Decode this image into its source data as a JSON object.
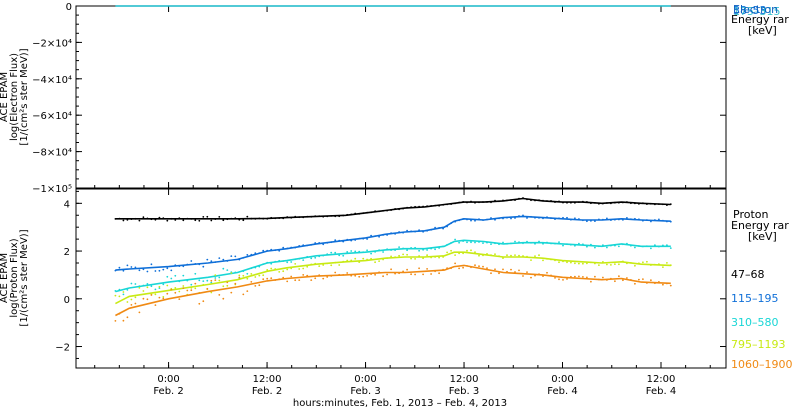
{
  "chart_data": [
    {
      "type": "line",
      "panel": "electron",
      "ylabel": [
        "ACE EPAM",
        "log(Electron Flux)",
        "[1/(cm²s ster MeV)]"
      ],
      "ylim": [
        -100000,
        0
      ],
      "y_ticks": [
        0,
        -20000,
        -40000,
        -60000,
        -80000,
        -100000
      ],
      "y_tick_labels": [
        "0",
        "−2×10⁴",
        "−4×10⁴",
        "−6×10⁴",
        "−8×10⁴",
        "−1×10⁵"
      ],
      "legend_title": [
        "Electron",
        "Energy rar",
        "[keV]"
      ],
      "legend_labels_overlapping": [
        "38–53",
        "175–315"
      ],
      "series_flat_at_zero": true,
      "grid": false,
      "legend_position": "right"
    },
    {
      "type": "line",
      "panel": "proton",
      "ylabel": [
        "ACE EPAM",
        "log(Proton Flux)",
        "[1/(cm²s ster MeV)]"
      ],
      "ylim": [
        -2.9,
        4.6
      ],
      "y_ticks": [
        -2,
        0,
        2,
        4
      ],
      "y_tick_labels": [
        "−2",
        "0",
        "2",
        "4"
      ],
      "legend_title": [
        "Proton",
        "Energy rar",
        "[keV]"
      ],
      "grid": false,
      "legend_position": "right",
      "x": [
        0.73,
        0.8,
        1.0,
        1.2,
        1.35,
        1.5,
        1.6,
        1.75,
        1.9,
        2.0,
        2.1,
        2.2,
        2.3,
        2.4,
        2.45,
        2.5,
        2.6,
        2.7,
        2.8,
        2.9,
        3.0,
        3.1,
        3.2,
        3.3,
        3.4,
        3.55
      ],
      "series": [
        {
          "name": "47–68",
          "color": "#000000",
          "values": [
            3.35,
            3.35,
            3.35,
            3.35,
            3.35,
            3.37,
            3.4,
            3.45,
            3.5,
            3.6,
            3.7,
            3.8,
            3.85,
            3.95,
            4.0,
            4.05,
            4.05,
            4.1,
            4.2,
            4.1,
            4.05,
            4.05,
            4.0,
            4.05,
            4.0,
            3.95
          ]
        },
        {
          "name": "115–195",
          "color": "#0f6fd8",
          "values": [
            1.2,
            1.25,
            1.35,
            1.5,
            1.65,
            2.0,
            2.1,
            2.3,
            2.45,
            2.55,
            2.7,
            2.8,
            2.85,
            3.0,
            3.25,
            3.35,
            3.3,
            3.4,
            3.45,
            3.4,
            3.35,
            3.3,
            3.3,
            3.35,
            3.3,
            3.25
          ]
        },
        {
          "name": "310–580",
          "color": "#19d6d6",
          "values": [
            0.3,
            0.45,
            0.7,
            0.9,
            1.1,
            1.5,
            1.6,
            1.8,
            1.9,
            1.95,
            2.05,
            2.1,
            2.1,
            2.2,
            2.4,
            2.45,
            2.4,
            2.3,
            2.35,
            2.35,
            2.3,
            2.25,
            2.2,
            2.3,
            2.2,
            2.2
          ]
        },
        {
          "name": "795–1193",
          "color": "#c8ea14",
          "values": [
            -0.2,
            0.1,
            0.35,
            0.6,
            0.8,
            1.15,
            1.3,
            1.45,
            1.55,
            1.6,
            1.7,
            1.75,
            1.75,
            1.8,
            1.95,
            1.95,
            1.85,
            1.75,
            1.75,
            1.7,
            1.6,
            1.55,
            1.5,
            1.55,
            1.45,
            1.4
          ]
        },
        {
          "name": "1060–1900",
          "color": "#f08a14",
          "values": [
            -0.7,
            -0.4,
            0.0,
            0.3,
            0.5,
            0.75,
            0.85,
            0.95,
            1.0,
            1.05,
            1.1,
            1.1,
            1.15,
            1.2,
            1.35,
            1.4,
            1.25,
            1.1,
            1.05,
            1.0,
            0.9,
            0.85,
            0.8,
            0.85,
            0.7,
            0.65
          ]
        }
      ]
    }
  ],
  "x_axis": {
    "xlim": [
      0.53,
      3.83
    ],
    "ticks": [
      {
        "value": 1.0,
        "time": "0:00",
        "date": "Feb. 2"
      },
      {
        "value": 1.5,
        "time": "12:00",
        "date": "Feb. 2"
      },
      {
        "value": 2.0,
        "time": "0:00",
        "date": "Feb. 3"
      },
      {
        "value": 2.5,
        "time": "12:00",
        "date": "Feb. 3"
      },
      {
        "value": 3.0,
        "time": "0:00",
        "date": "Feb. 4"
      },
      {
        "value": 3.5,
        "time": "12:00",
        "date": "Feb. 4"
      }
    ],
    "label": "hours:minutes, Feb.  1, 2013 – Feb.  4, 2013"
  }
}
